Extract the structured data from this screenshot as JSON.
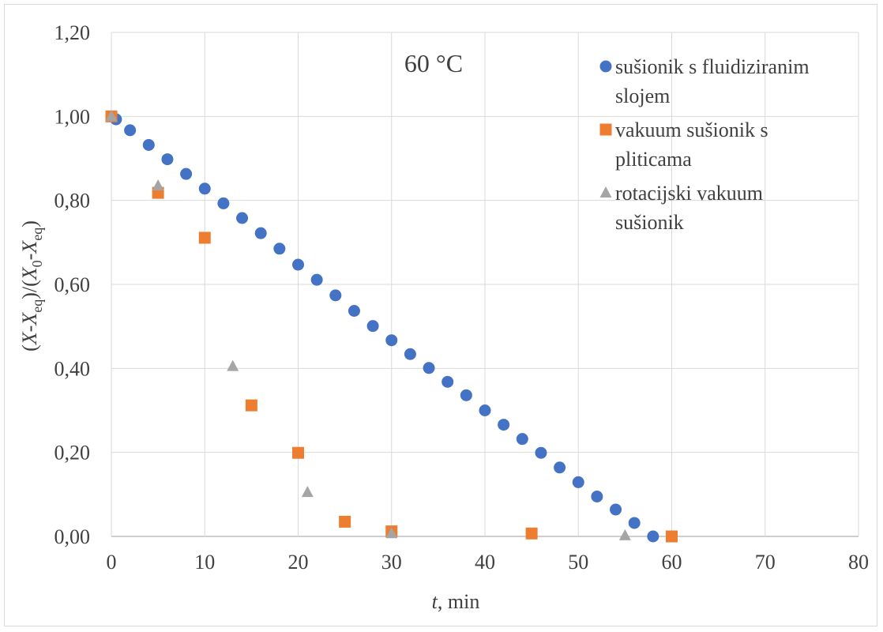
{
  "chart_data": {
    "type": "scatter",
    "annotation": "60 °C",
    "xlabel": {
      "var": "t",
      "unit": ", min"
    },
    "ylabel": {
      "p1": "(",
      "v1": "X",
      "p2": "-",
      "v2": "X",
      "s2": "eq",
      "p3": ")/(",
      "v3": "X",
      "s3": "0",
      "p4": "-",
      "v4": "X",
      "s4": "eq",
      "p5": ")"
    },
    "xlim": [
      0,
      80
    ],
    "ylim": [
      0,
      1.2
    ],
    "x_ticks": [
      0,
      10,
      20,
      30,
      40,
      50,
      60,
      70,
      80
    ],
    "x_tick_labels": [
      "0",
      "10",
      "20",
      "30",
      "40",
      "50",
      "60",
      "70",
      "80"
    ],
    "y_ticks": [
      0,
      0.2,
      0.4,
      0.6,
      0.8,
      1.0,
      1.2
    ],
    "y_tick_labels": [
      "0,00",
      "0,20",
      "0,40",
      "0,60",
      "0,80",
      "1,00",
      "1,20"
    ],
    "grid": true,
    "legend_position": "right",
    "series": [
      {
        "name": "sušionik s fluidiziranim slojem",
        "legend_lines": [
          "sušionik s fluidiziranim",
          "slojem"
        ],
        "marker": "circle",
        "color": "#4472c4",
        "points": [
          [
            0,
            1.0
          ],
          [
            0.5,
            0.993
          ],
          [
            2,
            0.967
          ],
          [
            4,
            0.932
          ],
          [
            6,
            0.898
          ],
          [
            8,
            0.863
          ],
          [
            10,
            0.828
          ],
          [
            12,
            0.793
          ],
          [
            14,
            0.758
          ],
          [
            16,
            0.722
          ],
          [
            18,
            0.685
          ],
          [
            20,
            0.647
          ],
          [
            22,
            0.611
          ],
          [
            24,
            0.574
          ],
          [
            26,
            0.537
          ],
          [
            28,
            0.501
          ],
          [
            30,
            0.467
          ],
          [
            32,
            0.434
          ],
          [
            34,
            0.401
          ],
          [
            36,
            0.368
          ],
          [
            38,
            0.336
          ],
          [
            40,
            0.3
          ],
          [
            42,
            0.266
          ],
          [
            44,
            0.232
          ],
          [
            46,
            0.199
          ],
          [
            48,
            0.164
          ],
          [
            50,
            0.129
          ],
          [
            52,
            0.095
          ],
          [
            54,
            0.064
          ],
          [
            56,
            0.032
          ],
          [
            58,
            0.0
          ]
        ]
      },
      {
        "name": "vakuum sušionik s pliticama",
        "legend_lines": [
          "vakuum sušionik s",
          "pliticama"
        ],
        "marker": "square",
        "color": "#ed7d31",
        "points": [
          [
            0,
            1.0
          ],
          [
            5,
            0.818
          ],
          [
            10,
            0.711
          ],
          [
            15,
            0.312
          ],
          [
            20,
            0.199
          ],
          [
            25,
            0.035
          ],
          [
            30,
            0.012
          ],
          [
            45,
            0.007
          ],
          [
            60,
            0.0
          ]
        ]
      },
      {
        "name": "rotacijski vakuum sušionik",
        "legend_lines": [
          "rotacijski vakuum",
          "sušionik"
        ],
        "marker": "triangle",
        "color": "#a5a5a5",
        "points": [
          [
            0,
            1.0
          ],
          [
            5,
            0.835
          ],
          [
            13,
            0.405
          ],
          [
            21,
            0.105
          ],
          [
            30,
            0.007
          ],
          [
            55,
            0.002
          ]
        ]
      }
    ]
  }
}
